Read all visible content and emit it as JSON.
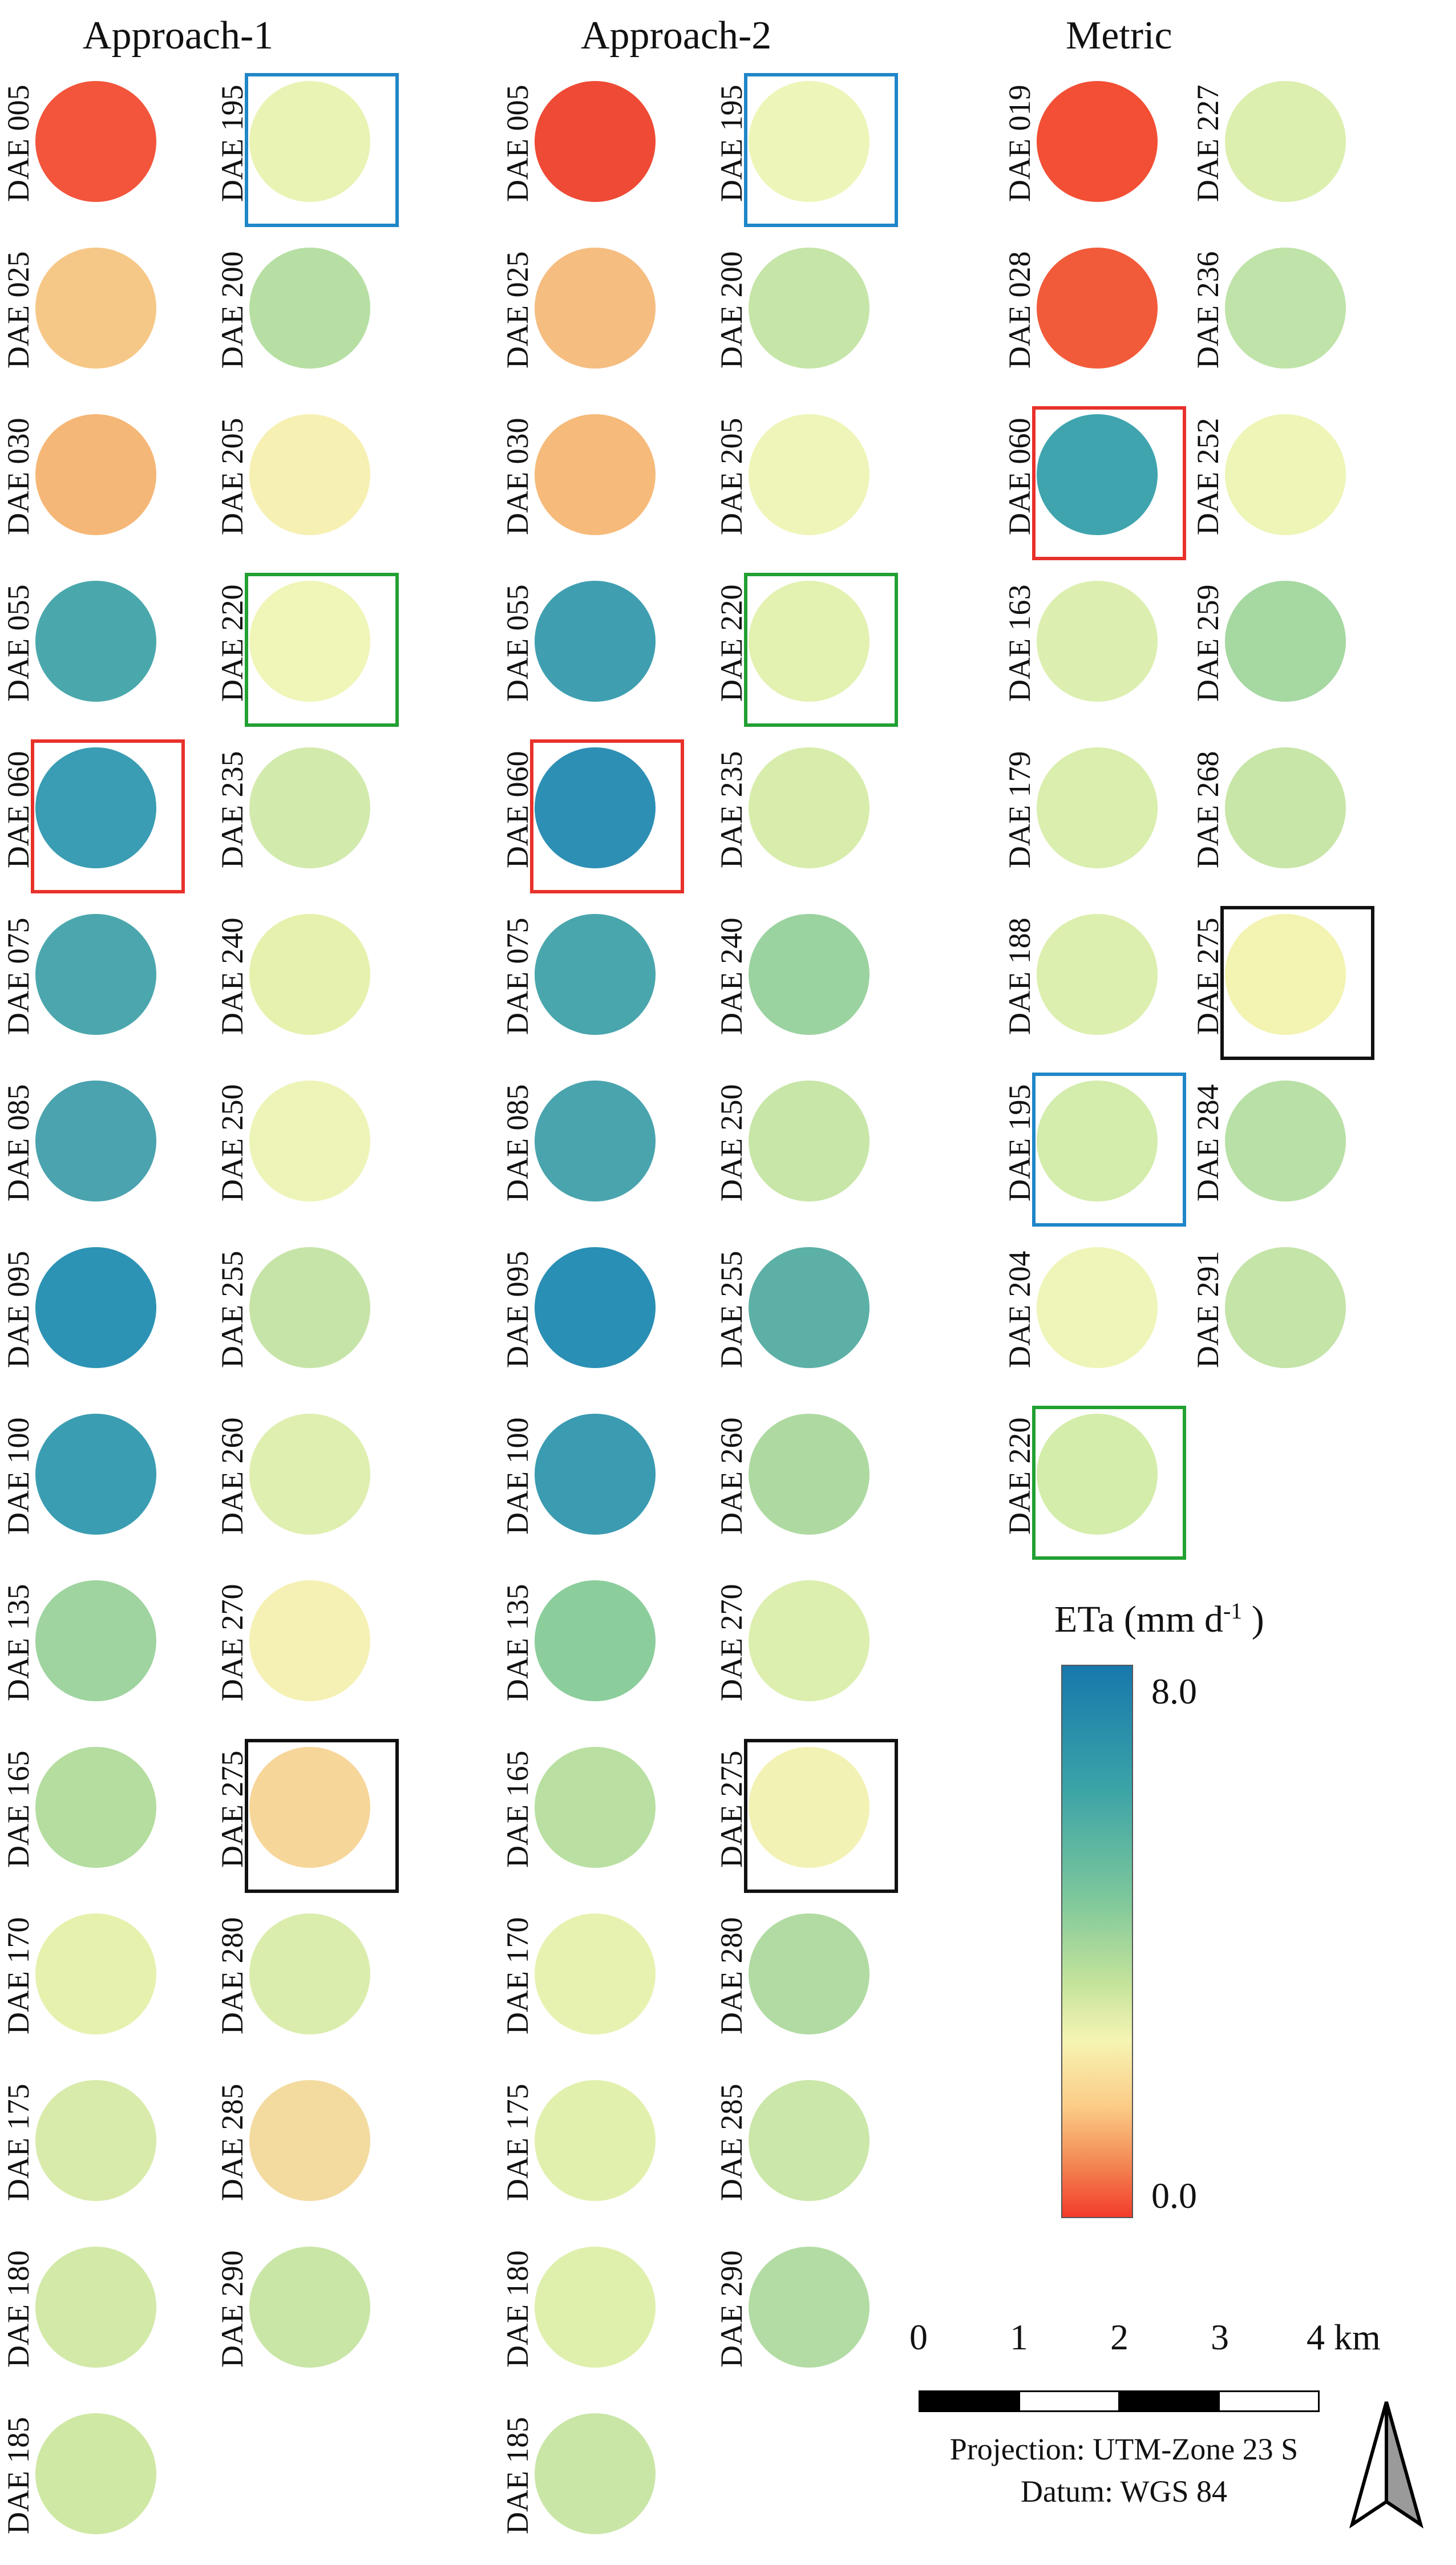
{
  "columns": {
    "approach1": "Approach-1",
    "approach2": "Approach-2",
    "metric": "Metric"
  },
  "colors": {
    "red_frame": "#e8312a",
    "blue_frame": "#1f86c8",
    "green_frame": "#22a032",
    "black_frame": "#111111"
  },
  "panels": {
    "a1_left": [
      "DAE 005",
      "DAE 025",
      "DAE 030",
      "DAE 055",
      "DAE 060",
      "DAE 075",
      "DAE 085",
      "DAE 095",
      "DAE 100",
      "DAE 135",
      "DAE 165",
      "DAE 170",
      "DAE 175",
      "DAE 180",
      "DAE 185"
    ],
    "a1_right": [
      "DAE 195",
      "DAE 200",
      "DAE 205",
      "DAE 220",
      "DAE 235",
      "DAE 240",
      "DAE 250",
      "DAE 255",
      "DAE 260",
      "DAE 270",
      "DAE 275",
      "DAE 280",
      "DAE 285",
      "DAE 290"
    ],
    "a2_left": [
      "DAE 005",
      "DAE 025",
      "DAE 030",
      "DAE 055",
      "DAE 060",
      "DAE 075",
      "DAE 085",
      "DAE 095",
      "DAE 100",
      "DAE 135",
      "DAE 165",
      "DAE 170",
      "DAE 175",
      "DAE 180",
      "DAE 185"
    ],
    "a2_right": [
      "DAE 195",
      "DAE 200",
      "DAE 205",
      "DAE 220",
      "DAE 235",
      "DAE 240",
      "DAE 250",
      "DAE 255",
      "DAE 260",
      "DAE 270",
      "DAE 275",
      "DAE 280",
      "DAE 285",
      "DAE 290"
    ],
    "m_left": [
      "DAE 019",
      "DAE 028",
      "DAE 060",
      "DAE 163",
      "DAE 179",
      "DAE 188",
      "DAE 195",
      "DAE 204",
      "DAE 220"
    ],
    "m_right": [
      "DAE 227",
      "DAE 236",
      "DAE 252",
      "DAE 259",
      "DAE 268",
      "DAE 275",
      "DAE 284",
      "DAE 291"
    ]
  },
  "legend": {
    "title_main": "ETa (mm d",
    "title_sup": "-1",
    "title_close": " )",
    "max_label": "8.0",
    "min_label": "0.0"
  },
  "scale": {
    "ticks": [
      "0",
      "1",
      "2",
      "3",
      "4 km"
    ]
  },
  "projection": {
    "line1": "Projection: UTM-Zone 23 S",
    "line2": "Datum: WGS 84"
  }
}
